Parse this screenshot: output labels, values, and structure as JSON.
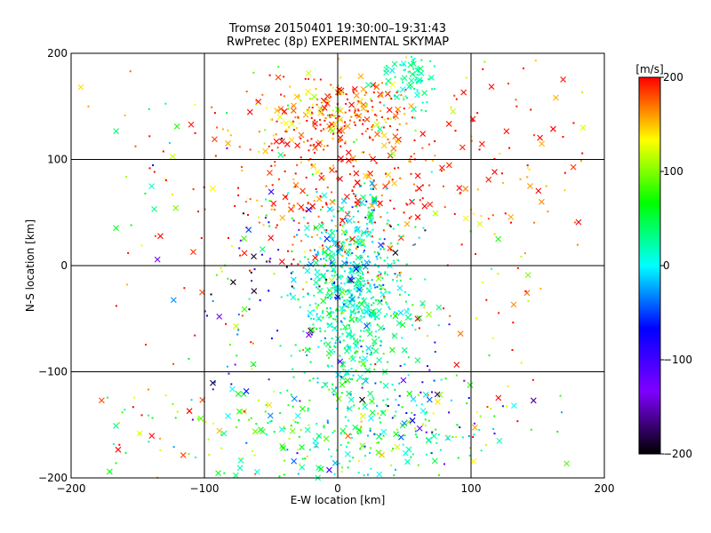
{
  "chart_data": {
    "type": "scatter",
    "title_lines": [
      "Tromsø 20150401 19:30:00–19:31:43",
      "RwPretec (8p) EXPERIMENTAL SKYMAP"
    ],
    "xlabel": "E-W location [km]",
    "ylabel": "N-S location [km]",
    "xlim": [
      -200,
      200
    ],
    "ylim": [
      -200,
      200
    ],
    "xticks": [
      -200,
      -100,
      0,
      100,
      200
    ],
    "yticks": [
      -200,
      -100,
      0,
      100,
      200
    ],
    "grid_lines": [
      -100,
      0,
      100
    ],
    "colorbar": {
      "label": "[m/s]",
      "range": [
        -200,
        200
      ],
      "ticks": [
        200,
        100,
        0,
        -100,
        -200
      ],
      "colormap": [
        "#000000",
        "#7f00ff",
        "#0000ff",
        "#00ffff",
        "#00ff00",
        "#ffff00",
        "#ff0000"
      ]
    },
    "markers": [
      "+ small dot",
      "× cross"
    ],
    "clusters": [
      {
        "x": 0,
        "y": 140,
        "sx": 35,
        "sy": 20,
        "v": 175,
        "vs": 40,
        "n": 320
      },
      {
        "x": 5,
        "y": 60,
        "sx": 40,
        "sy": 30,
        "v": 190,
        "vs": 25,
        "n": 200
      },
      {
        "x": 10,
        "y": 0,
        "sx": 20,
        "sy": 35,
        "v": 10,
        "vs": 35,
        "n": 420
      },
      {
        "x": 15,
        "y": -60,
        "sx": 20,
        "sy": 30,
        "v": 30,
        "vs": 30,
        "n": 260
      },
      {
        "x": 10,
        "y": -160,
        "sx": 55,
        "sy": 25,
        "v": 50,
        "vs": 50,
        "n": 300
      },
      {
        "x": 55,
        "y": 175,
        "sx": 12,
        "sy": 15,
        "v": 20,
        "vs": 15,
        "n": 80
      },
      {
        "x": -100,
        "y": 60,
        "sx": 60,
        "sy": 80,
        "v": 140,
        "vs": 80,
        "n": 90
      },
      {
        "x": 130,
        "y": 100,
        "sx": 40,
        "sy": 60,
        "v": 180,
        "vs": 40,
        "n": 80
      },
      {
        "x": 110,
        "y": -50,
        "sx": 50,
        "sy": 80,
        "v": 150,
        "vs": 70,
        "n": 60
      },
      {
        "x": -140,
        "y": -150,
        "sx": 40,
        "sy": 30,
        "v": 120,
        "vs": 70,
        "n": 45
      },
      {
        "x": 60,
        "y": -110,
        "sx": 30,
        "sy": 30,
        "v": -80,
        "vs": 50,
        "n": 40
      },
      {
        "x": -40,
        "y": -20,
        "sx": 50,
        "sy": 60,
        "v": 0,
        "vs": 120,
        "n": 120
      }
    ]
  }
}
